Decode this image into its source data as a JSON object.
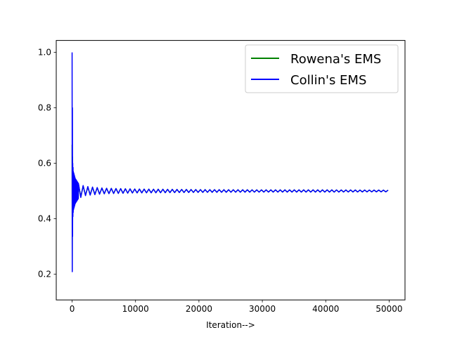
{
  "chart_data": {
    "type": "line",
    "title": "",
    "xlabel": "Iteration-->",
    "ylabel": "",
    "xlim": [
      -2500,
      52500
    ],
    "ylim": [
      0.107,
      1.043
    ],
    "xticks": [
      0,
      10000,
      20000,
      30000,
      40000,
      50000
    ],
    "xtick_labels": [
      "0",
      "10000",
      "20000",
      "30000",
      "40000",
      "50000"
    ],
    "yticks": [
      0.2,
      0.4,
      0.6,
      0.8,
      1.0
    ],
    "ytick_labels": [
      "0.2",
      "0.4",
      "0.6",
      "0.8",
      "1.0"
    ],
    "grid": false,
    "legend_position": "upper right",
    "series": [
      {
        "name": "Rowena's EMS",
        "color": "#008000",
        "description": "damped oscillation converging to 0.5, hidden underneath Collin's EMS",
        "x": [
          0,
          100,
          200,
          500,
          1000,
          2000,
          5000,
          10000,
          20000,
          30000,
          40000,
          50000
        ],
        "y_upper": [
          0.667,
          0.58,
          0.56,
          0.54,
          0.525,
          0.515,
          0.51,
          0.507,
          0.505,
          0.504,
          0.504,
          0.503
        ],
        "y_lower": [
          0.15,
          0.42,
          0.44,
          0.46,
          0.475,
          0.485,
          0.49,
          0.493,
          0.495,
          0.496,
          0.496,
          0.497
        ]
      },
      {
        "name": "Collin's EMS",
        "color": "#0000ff",
        "description": "damped oscillation converging to 0.5",
        "x": [
          0,
          100,
          200,
          500,
          1000,
          2000,
          5000,
          10000,
          20000,
          30000,
          40000,
          50000
        ],
        "y_upper": [
          1.0,
          0.6,
          0.57,
          0.545,
          0.527,
          0.517,
          0.51,
          0.507,
          0.505,
          0.504,
          0.504,
          0.503
        ],
        "y_lower": [
          0.145,
          0.4,
          0.43,
          0.455,
          0.473,
          0.483,
          0.49,
          0.493,
          0.495,
          0.496,
          0.496,
          0.497
        ]
      }
    ]
  }
}
